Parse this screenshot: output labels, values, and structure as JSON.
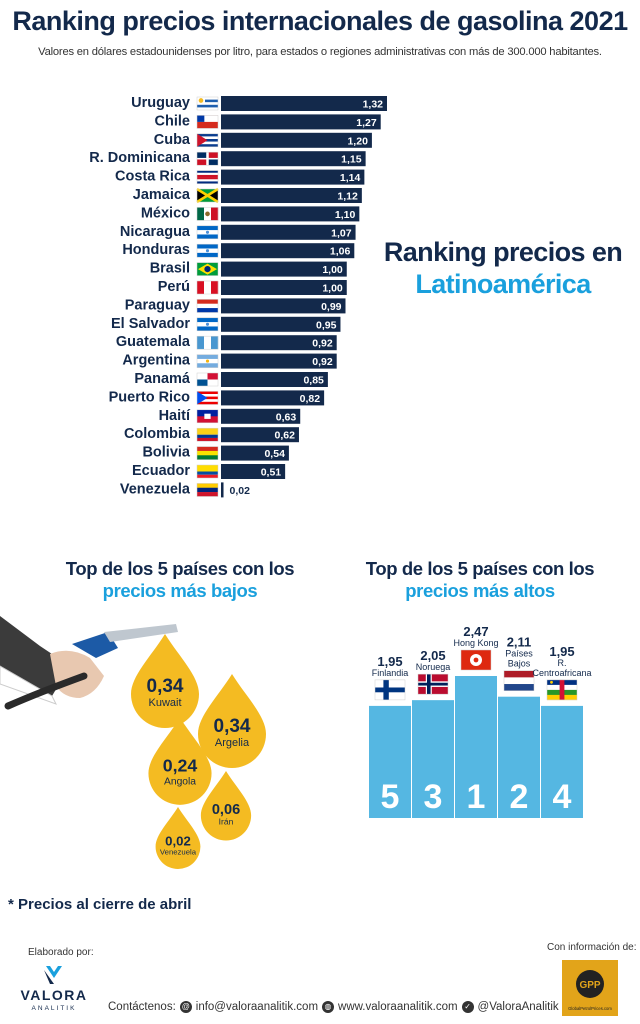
{
  "header": {
    "title": "Ranking precios internacionales de gasolina 2021",
    "subtitle": "Valores en dólares estadounidenses por litro, para estados o regiones administrativas con más de 300.000 habitantes."
  },
  "side_heading": {
    "line1": "Ranking precios en",
    "line2": "Latinoamérica"
  },
  "lowest_section": {
    "line1": "Top de los 5 países con los",
    "line2": "precios más bajos"
  },
  "highest_section": {
    "line1": "Top de los 5 países con los",
    "line2": "precios más altos"
  },
  "footnote": "* Precios al cierre de abril",
  "footer": {
    "made_by": "Elaborado por:",
    "brand": "VALORA",
    "brand_sub": "ANALITIK",
    "info_from": "Con información de:",
    "source_logo": "GPP",
    "source_logo_text": "GlobalPetrolPrices.com",
    "contact_label": "Contáctenos:",
    "email": "info@valoraanalitik.com",
    "website": "www.valoraanalitik.com",
    "handle": "@ValoraAnalitik"
  },
  "colors": {
    "navy": "#13294b",
    "sky": "#1aa0dd",
    "drop": "#f4bb22",
    "podium": "#55b7e2"
  },
  "chart_data": [
    {
      "type": "bar",
      "orientation": "horizontal",
      "categories": [
        "Uruguay",
        "Chile",
        "Cuba",
        "R. Dominicana",
        "Costa Rica",
        "Jamaica",
        "México",
        "Nicaragua",
        "Honduras",
        "Brasil",
        "Perú",
        "Paraguay",
        "El Salvador",
        "Guatemala",
        "Argentina",
        "Panamá",
        "Puerto Rico",
        "Haití",
        "Colombia",
        "Bolivia",
        "Ecuador",
        "Venezuela"
      ],
      "values": [
        1.32,
        1.27,
        1.2,
        1.15,
        1.14,
        1.12,
        1.1,
        1.07,
        1.06,
        1.0,
        1.0,
        0.99,
        0.95,
        0.92,
        0.92,
        0.85,
        0.82,
        0.63,
        0.62,
        0.54,
        0.51,
        0.02
      ],
      "labels": [
        "1,32",
        "1,27",
        "1,20",
        "1,15",
        "1,14",
        "1,12",
        "1,10",
        "1,07",
        "1,06",
        "1,00",
        "1,00",
        "0,99",
        "0,95",
        "0,92",
        "0,92",
        "0,85",
        "0,82",
        "0,63",
        "0,62",
        "0,54",
        "0,51",
        "0,02"
      ],
      "flags": [
        "uruguay-flag",
        "chile-flag",
        "cuba-flag",
        "dominican-flag",
        "costa-rica-flag",
        "jamaica-flag",
        "mexico-flag",
        "nicaragua-flag",
        "honduras-flag",
        "brazil-flag",
        "peru-flag",
        "paraguay-flag",
        "el-salvador-flag",
        "guatemala-flag",
        "argentina-flag",
        "panama-flag",
        "puerto-rico-flag",
        "haiti-flag",
        "colombia-flag",
        "bolivia-flag",
        "ecuador-flag",
        "venezuela-flag"
      ],
      "title": "Ranking precios en Latinoamérica"
    },
    {
      "type": "bubble",
      "title": "Top de los 5 países con los precios más bajos",
      "categories": [
        "Kuwait",
        "Argelia",
        "Angola",
        "Irán",
        "Venezuela"
      ],
      "values": [
        0.34,
        0.34,
        0.24,
        0.06,
        0.02
      ],
      "labels": [
        "0,34",
        "0,34",
        "0,24",
        "0,06",
        "0,02"
      ]
    },
    {
      "type": "bar",
      "title": "Top de los 5 países con los precios más altos",
      "categories": [
        "Finlandia",
        "Noruega",
        "Hong Kong",
        "Países Bajos",
        "R. Centroafricana"
      ],
      "category_lines": [
        [
          "Finlandia"
        ],
        [
          "Noruega"
        ],
        [
          "Hong Kong"
        ],
        [
          "Países",
          "Bajos"
        ],
        [
          "R.",
          "Centroafricana"
        ]
      ],
      "values": [
        1.95,
        2.05,
        2.47,
        2.11,
        1.95
      ],
      "labels": [
        "1,95",
        "2,05",
        "2,47",
        "2,11",
        "1,95"
      ],
      "ranks": [
        "5",
        "3",
        "1",
        "2",
        "4"
      ],
      "flags": [
        "finland-flag",
        "norway-flag",
        "hong-kong-flag",
        "netherlands-flag",
        "central-african-flag"
      ]
    }
  ]
}
